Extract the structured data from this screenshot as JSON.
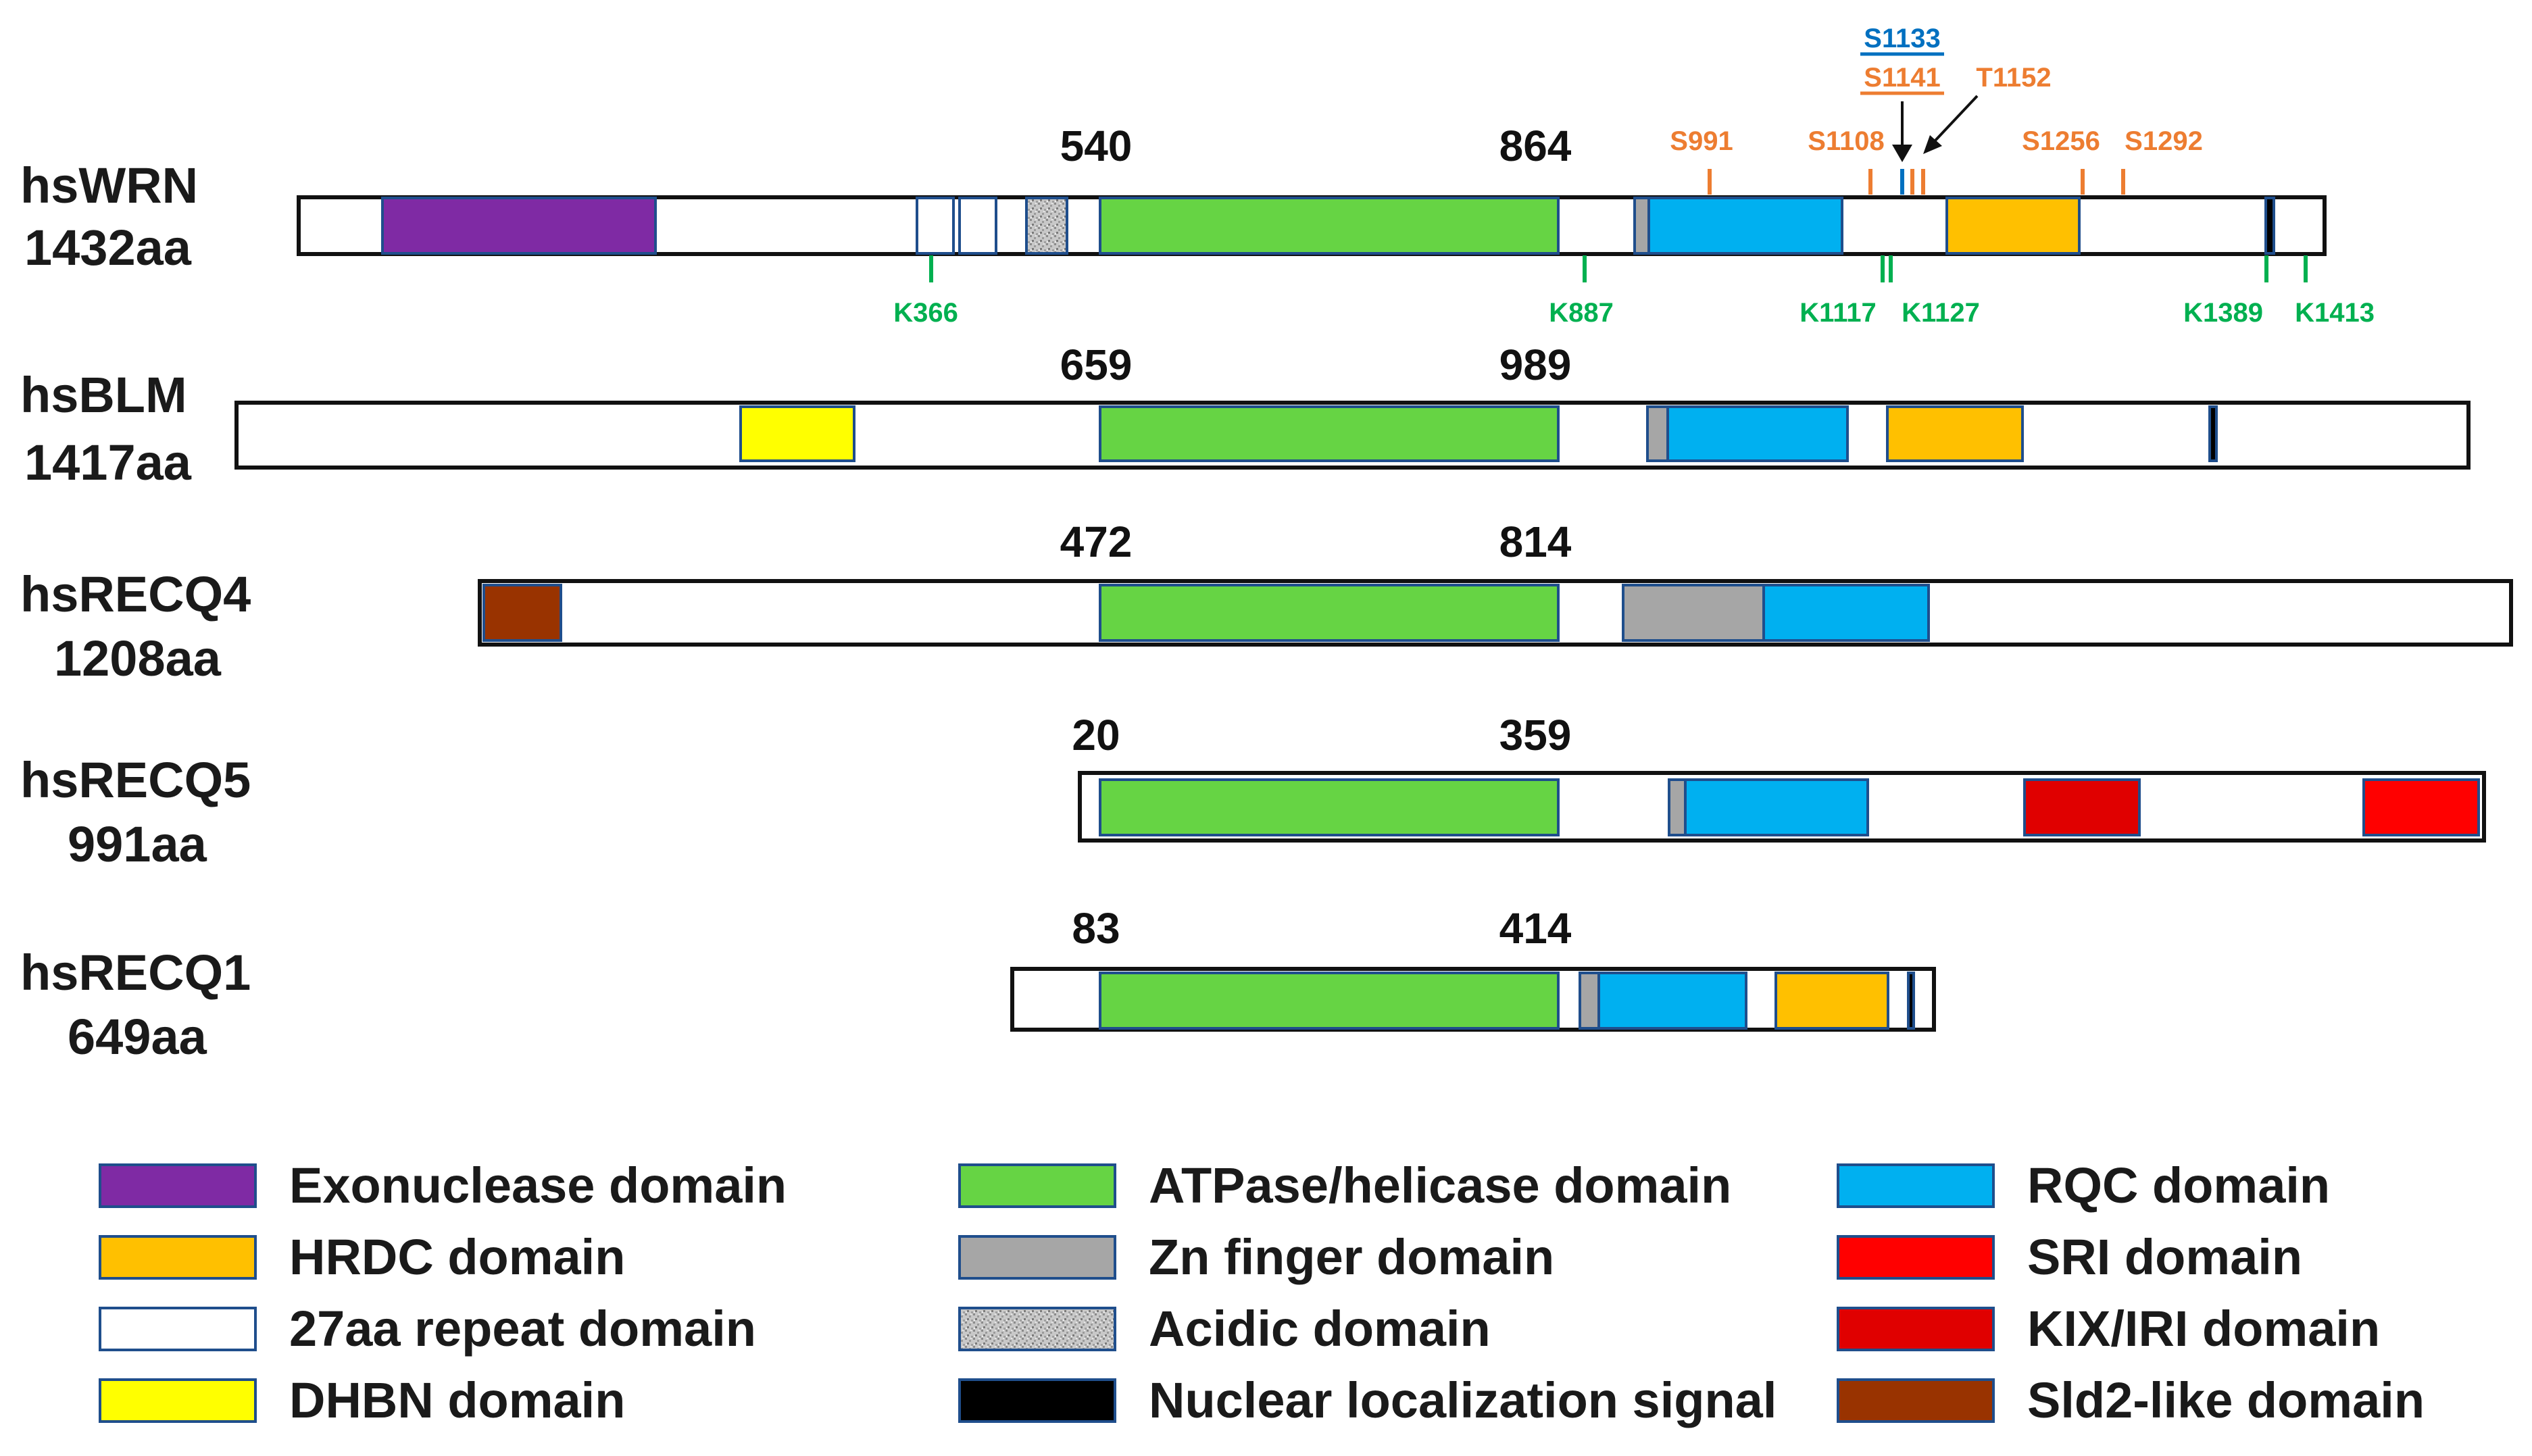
{
  "colors": {
    "exonuclease": "#7f2aa4",
    "hrdc": "#ffc000",
    "repeat27": "#ffffff",
    "dhbn": "#ffff00",
    "atpase": "#66d444",
    "znfinger": "#a6a6a6",
    "acidic": "#bfbfbf",
    "nls": "#000000",
    "rqc": "#00b0f0",
    "sri": "#ff0000",
    "kix": "#e00000",
    "sld2": "#993300",
    "phospho_orange": "#ed7d31",
    "phospho_blue": "#0070c0",
    "lys_green": "#00b050",
    "domain_border": "#1f4e8c"
  },
  "proteins": [
    {
      "name": "hsWRN",
      "length_label": "1432aa",
      "start_label": "540",
      "end_label": "864",
      "domains": [
        {
          "type": "exonuclease"
        },
        {
          "type": "repeat27"
        },
        {
          "type": "repeat27"
        },
        {
          "type": "acidic"
        },
        {
          "type": "atpase"
        },
        {
          "type": "znfinger"
        },
        {
          "type": "rqc"
        },
        {
          "type": "hrdc"
        },
        {
          "type": "nls"
        }
      ],
      "phospho_sites": [
        {
          "label": "S991",
          "color": "orange"
        },
        {
          "label": "S1108",
          "color": "orange"
        },
        {
          "label": "S1133",
          "color": "blue",
          "underline": true
        },
        {
          "label": "S1141",
          "color": "orange",
          "underline": true
        },
        {
          "label": "T1152",
          "color": "orange"
        },
        {
          "label": "S1256",
          "color": "orange"
        },
        {
          "label": "S1292",
          "color": "orange"
        }
      ],
      "lysine_sites": [
        "K366",
        "K887",
        "K1117",
        "K1127",
        "K1389",
        "K1413"
      ]
    },
    {
      "name": "hsBLM",
      "length_label": "1417aa",
      "start_label": "659",
      "end_label": "989",
      "domains": [
        {
          "type": "dhbn"
        },
        {
          "type": "atpase"
        },
        {
          "type": "znfinger"
        },
        {
          "type": "rqc"
        },
        {
          "type": "hrdc"
        },
        {
          "type": "nls"
        }
      ]
    },
    {
      "name": "hsRECQ4",
      "length_label": "1208aa",
      "start_label": "472",
      "end_label": "814",
      "domains": [
        {
          "type": "sld2"
        },
        {
          "type": "atpase"
        },
        {
          "type": "znfinger"
        },
        {
          "type": "rqc"
        }
      ]
    },
    {
      "name": "hsRECQ5",
      "length_label": "991aa",
      "start_label": "20",
      "end_label": "359",
      "domains": [
        {
          "type": "atpase"
        },
        {
          "type": "znfinger"
        },
        {
          "type": "rqc"
        },
        {
          "type": "kix"
        },
        {
          "type": "sri"
        }
      ]
    },
    {
      "name": "hsRECQ1",
      "length_label": "649aa",
      "start_label": "83",
      "end_label": "414",
      "domains": [
        {
          "type": "atpase"
        },
        {
          "type": "znfinger"
        },
        {
          "type": "rqc"
        },
        {
          "type": "hrdc"
        },
        {
          "type": "nls"
        }
      ]
    }
  ],
  "legend": [
    {
      "key": "exonuclease",
      "label": "Exonuclease domain"
    },
    {
      "key": "hrdc",
      "label": "HRDC domain"
    },
    {
      "key": "repeat27",
      "label": "27aa repeat domain"
    },
    {
      "key": "dhbn",
      "label": "DHBN domain"
    },
    {
      "key": "atpase",
      "label": "ATPase/helicase domain"
    },
    {
      "key": "znfinger",
      "label": "Zn finger domain"
    },
    {
      "key": "acidic",
      "label": "Acidic domain"
    },
    {
      "key": "nls",
      "label": "Nuclear localization signal"
    },
    {
      "key": "rqc",
      "label": "RQC domain"
    },
    {
      "key": "sri",
      "label": "SRI domain"
    },
    {
      "key": "kix",
      "label": "KIX/IRI domain"
    },
    {
      "key": "sld2",
      "label": "Sld2-like domain"
    }
  ]
}
